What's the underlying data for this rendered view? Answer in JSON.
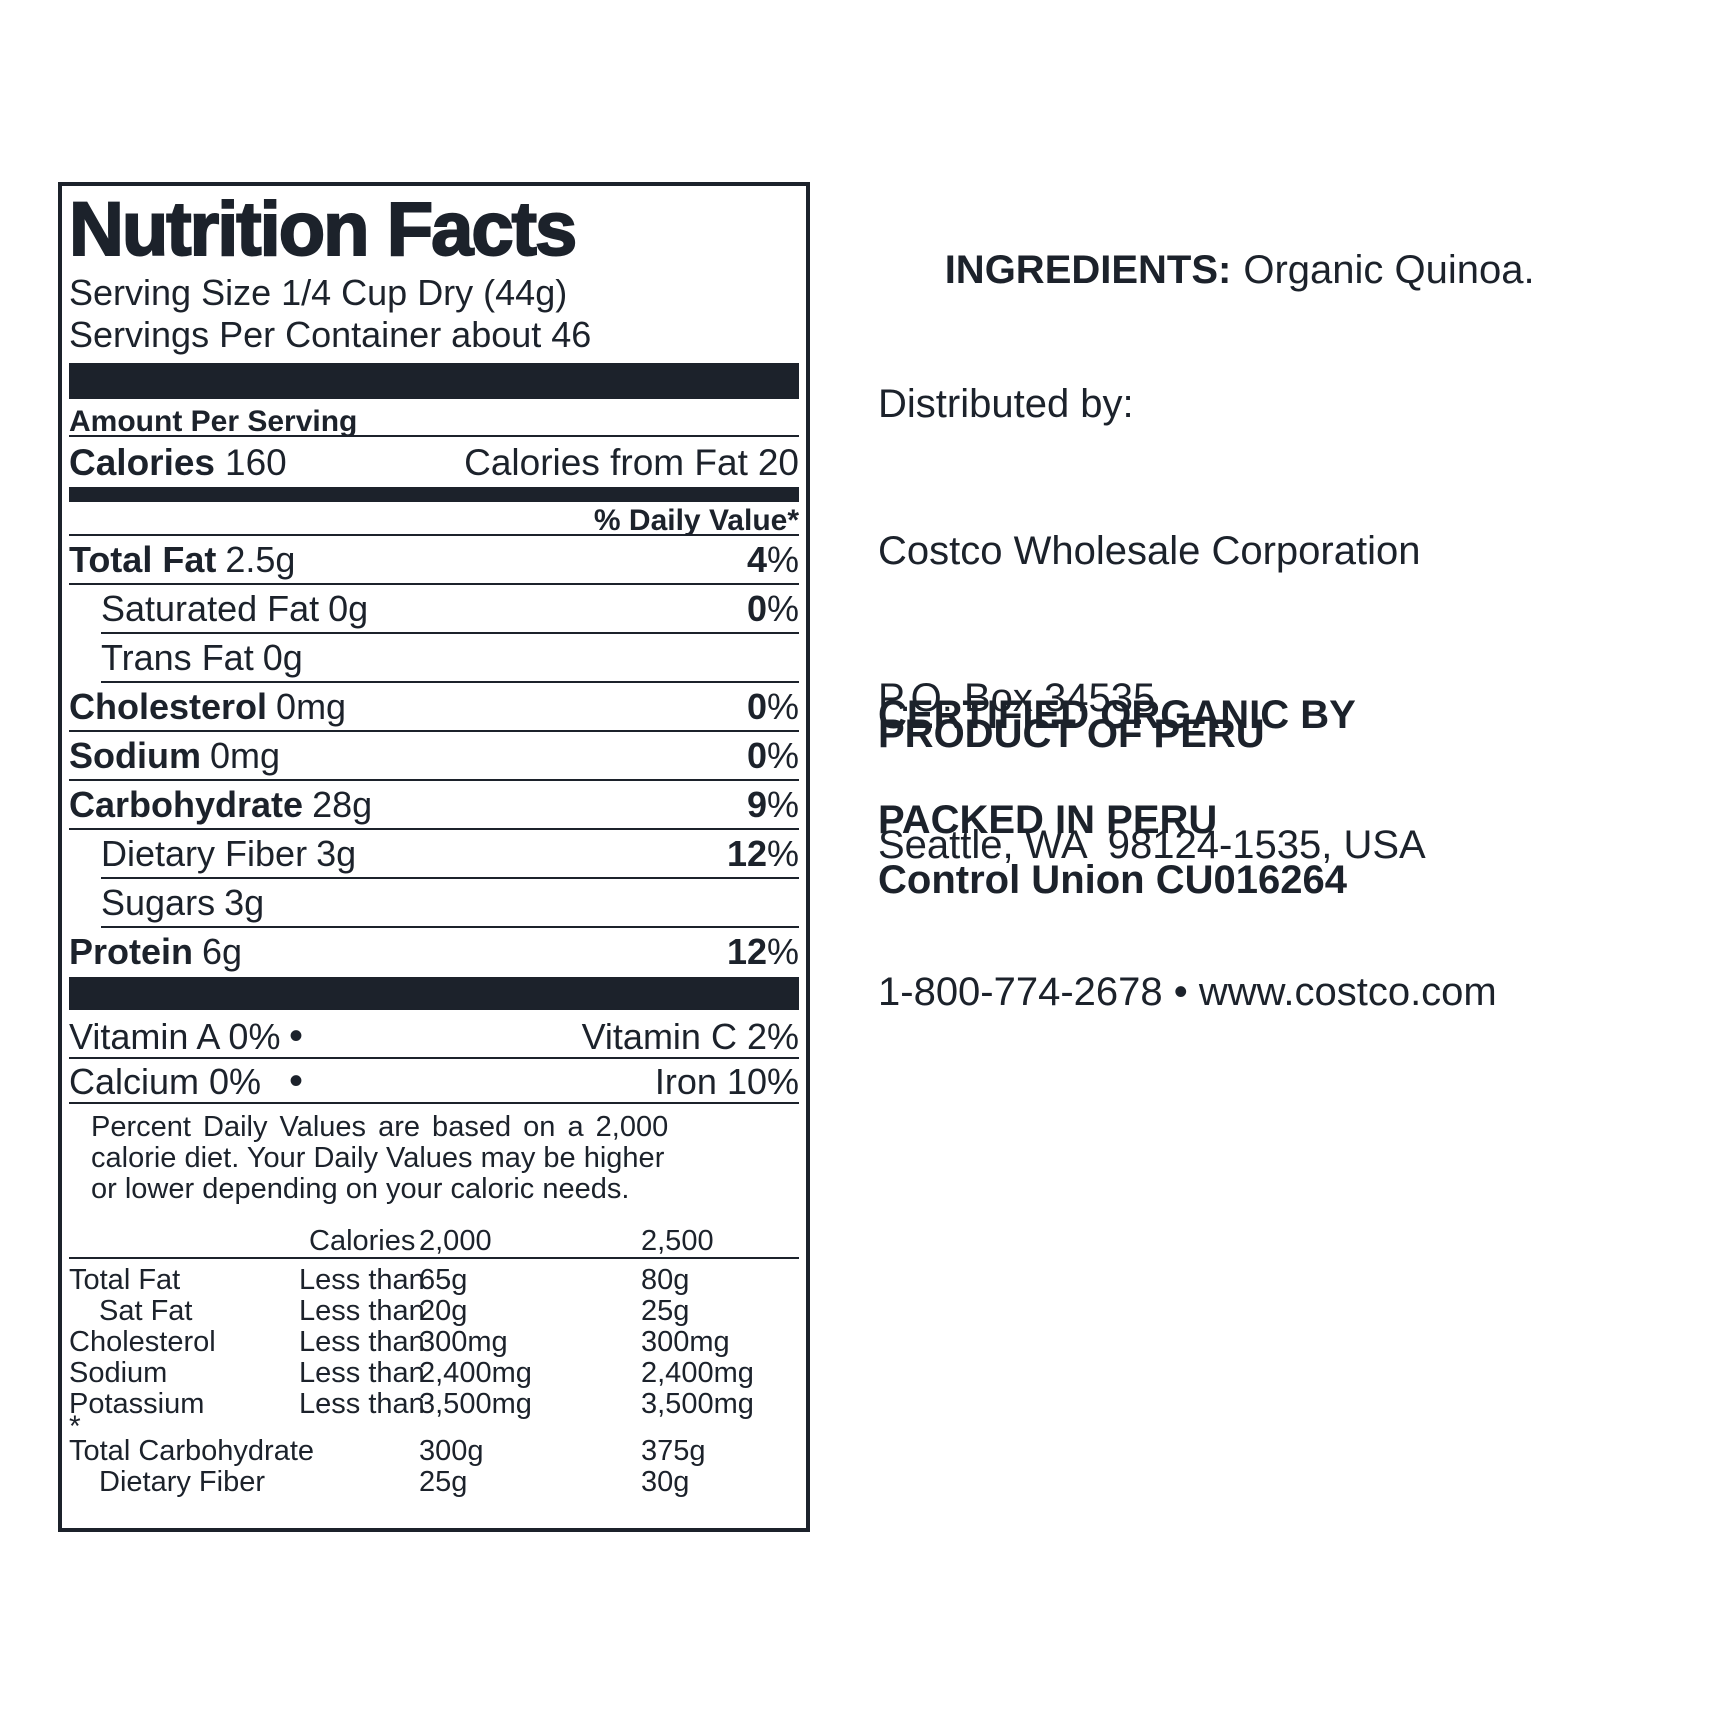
{
  "label": {
    "title": "Nutrition Facts",
    "serving_size": "Serving Size 1/4 Cup Dry (44g)",
    "servings_per_container": "Servings Per Container about 46",
    "amount_per_serving": "Amount Per Serving",
    "calories_label": "Calories",
    "calories_value": "160",
    "calories_from_fat_label": "Calories from Fat",
    "calories_from_fat_value": "20",
    "daily_value_header": "% Daily Value*",
    "percent_sign": "%",
    "bullet": "•",
    "nutrients": [
      {
        "name": "Total Fat",
        "amount": "2.5g",
        "dv": "4"
      },
      {
        "name": "Saturated Fat",
        "amount": "0g",
        "dv": "0"
      },
      {
        "name": "Trans Fat",
        "amount": "0g",
        "dv": ""
      },
      {
        "name": "Cholesterol",
        "amount": "0mg",
        "dv": "0"
      },
      {
        "name": "Sodium",
        "amount": "0mg",
        "dv": "0"
      },
      {
        "name": "Carbohydrate",
        "amount": "28g",
        "dv": "9"
      },
      {
        "name": "Dietary Fiber",
        "amount": "3g",
        "dv": "12"
      },
      {
        "name": "Sugars",
        "amount": "3g",
        "dv": ""
      },
      {
        "name": "Protein",
        "amount": "6g",
        "dv": "12"
      }
    ],
    "vitamins": [
      {
        "left": "Vitamin A 0%",
        "right": "Vitamin C 2%"
      },
      {
        "left": "Calcium 0%",
        "right": "Iron 10%"
      }
    ],
    "footnote": {
      "line1": "Percent Daily Values are based on a 2,000",
      "line2": "calorie diet. Your Daily Values may be higher",
      "line3": "or lower depending on your caloric needs."
    },
    "dv_table": {
      "header": {
        "calories": "Calories",
        "col2000": "2,000",
        "col2500": "2,500"
      },
      "asterisk": "*",
      "rows": [
        {
          "label": "Total Fat",
          "cond": "Less than",
          "v2000": "65g",
          "v2500": "80g"
        },
        {
          "label": "Sat Fat",
          "cond": "Less than",
          "v2000": "20g",
          "v2500": "25g"
        },
        {
          "label": "Cholesterol",
          "cond": "Less than",
          "v2000": "300mg",
          "v2500": "300mg"
        },
        {
          "label": "Sodium",
          "cond": "Less than",
          "v2000": "2,400mg",
          "v2500": "2,400mg"
        },
        {
          "label": "Potassium",
          "cond": "Less than",
          "v2000": "3,500mg",
          "v2500": "3,500mg"
        },
        {
          "label": "Total Carbohydrate",
          "cond": "",
          "v2000": "300g",
          "v2500": "375g"
        },
        {
          "label": "Dietary Fiber",
          "cond": "",
          "v2000": "25g",
          "v2500": "30g"
        }
      ]
    }
  },
  "info": {
    "ingredients_label": "INGREDIENTS:",
    "ingredients_value": "Organic Quinoa.",
    "distributed_by": "Distributed by:",
    "company": "Costco Wholesale Corporation",
    "po_box": "P.O. Box 34535",
    "city_line": "Seattle, WA  98124-1535, USA",
    "contact_line": "1-800-774-2678 • www.costco.com",
    "certified_by_label": "CERTIFIED ORGANIC BY",
    "certifier": "Control Union CU016264",
    "product_of": "PRODUCT OF PERU",
    "packed_in": "PACKED IN PERU"
  },
  "colors": {
    "ink": "#1c222b",
    "background": "#ffffff"
  }
}
